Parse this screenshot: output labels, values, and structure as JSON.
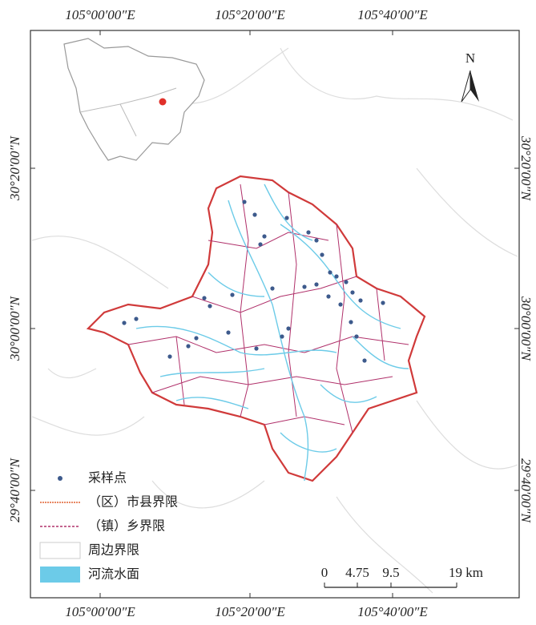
{
  "frame": {
    "top_labels": [
      "105°00′00″E",
      "105°20′00″E",
      "105°40′00″E"
    ],
    "bottom_labels": [
      "105°00′00″E",
      "105°20′00″E",
      "105°40′00″E"
    ],
    "left_labels": [
      "30°20′00″N",
      "30°00′00″N",
      "29°40′00″N"
    ],
    "right_labels": [
      "30°20′00″N",
      "30°00′00″N",
      "29°40′00″N"
    ]
  },
  "north_arrow": "N",
  "legend": [
    "采样点",
    "（区）市县界限",
    "（镇）乡界限",
    "周边界限",
    "河流水面"
  ],
  "scale_bar": [
    "0",
    "4.75",
    "9.5",
    "19 km"
  ]
}
